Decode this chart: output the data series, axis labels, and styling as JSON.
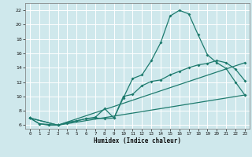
{
  "xlabel": "Humidex (Indice chaleur)",
  "bg_color": "#cfe8ec",
  "grid_color": "#ffffff",
  "line_color": "#1e7b6e",
  "xlim": [
    -0.5,
    23.5
  ],
  "ylim": [
    5.5,
    23.0
  ],
  "xticks": [
    0,
    1,
    2,
    3,
    4,
    5,
    6,
    7,
    8,
    9,
    10,
    11,
    12,
    13,
    14,
    15,
    16,
    17,
    18,
    19,
    20,
    21,
    22,
    23
  ],
  "yticks": [
    6,
    8,
    10,
    12,
    14,
    16,
    18,
    20,
    22
  ],
  "line1_x": [
    0,
    1,
    2,
    3,
    4,
    5,
    6,
    7,
    8,
    9,
    10,
    11,
    12,
    13,
    14,
    15,
    16,
    17,
    18,
    19,
    20,
    21,
    22,
    23
  ],
  "line1_y": [
    7.0,
    6.2,
    6.0,
    6.0,
    6.3,
    6.6,
    6.9,
    7.0,
    6.9,
    7.0,
    9.8,
    12.5,
    13.0,
    15.0,
    17.5,
    21.2,
    22.0,
    21.5,
    18.6,
    15.8,
    14.7,
    13.9,
    12.0,
    10.2
  ],
  "line2_x": [
    0,
    1,
    2,
    3,
    4,
    5,
    6,
    7,
    8,
    9,
    10,
    11,
    12,
    13,
    14,
    15,
    16,
    17,
    18,
    19,
    20,
    21,
    22,
    23
  ],
  "line2_y": [
    7.0,
    6.2,
    6.1,
    6.0,
    6.4,
    6.6,
    6.9,
    7.1,
    8.3,
    7.0,
    10.0,
    10.3,
    11.5,
    12.1,
    12.3,
    13.0,
    13.5,
    14.0,
    14.4,
    14.6,
    15.0,
    14.7,
    13.8,
    12.2
  ],
  "line3_x": [
    0,
    3,
    23
  ],
  "line3_y": [
    7.0,
    6.0,
    14.7
  ],
  "line4_x": [
    0,
    3,
    23
  ],
  "line4_y": [
    7.0,
    6.0,
    10.2
  ]
}
